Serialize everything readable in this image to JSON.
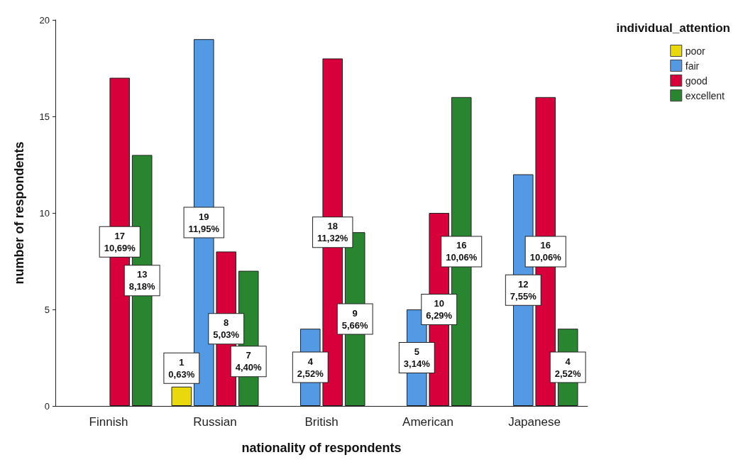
{
  "chart_data": {
    "type": "bar",
    "xlabel": "nationality of respondents",
    "ylabel": "number of respondents",
    "legend_title": "individual_attention",
    "legend": "top right",
    "grid": false,
    "categories": [
      "Finnish",
      "Russian",
      "British",
      "American",
      "Japanese"
    ],
    "ylim": [
      0,
      20
    ],
    "yticks": [
      0,
      5,
      10,
      15,
      20
    ],
    "series": [
      {
        "name": "poor",
        "color": "#e8d80c",
        "values": [
          0,
          1,
          0,
          0,
          0
        ],
        "value_labels": [
          null,
          "1\n0,63%",
          null,
          null,
          null
        ]
      },
      {
        "name": "fair",
        "color": "#5499e3",
        "values": [
          0,
          19,
          4,
          5,
          12
        ],
        "value_labels": [
          null,
          "19\n11,95%",
          "4\n2,52%",
          "5\n3,14%",
          "12\n7,55%"
        ]
      },
      {
        "name": "good",
        "color": "#d8003a",
        "values": [
          17,
          8,
          18,
          10,
          16
        ],
        "value_labels": [
          "17\n10,69%",
          "8\n5,03%",
          "18\n11,32%",
          "10\n6,29%",
          "16\n10,06%"
        ]
      },
      {
        "name": "excellent",
        "color": "#2a8530",
        "values": [
          13,
          7,
          9,
          16,
          4
        ],
        "value_labels": [
          "13\n8,18%",
          "7\n4,40%",
          "9\n5,66%",
          "16\n10,06%",
          "4\n2,52%"
        ]
      }
    ]
  }
}
